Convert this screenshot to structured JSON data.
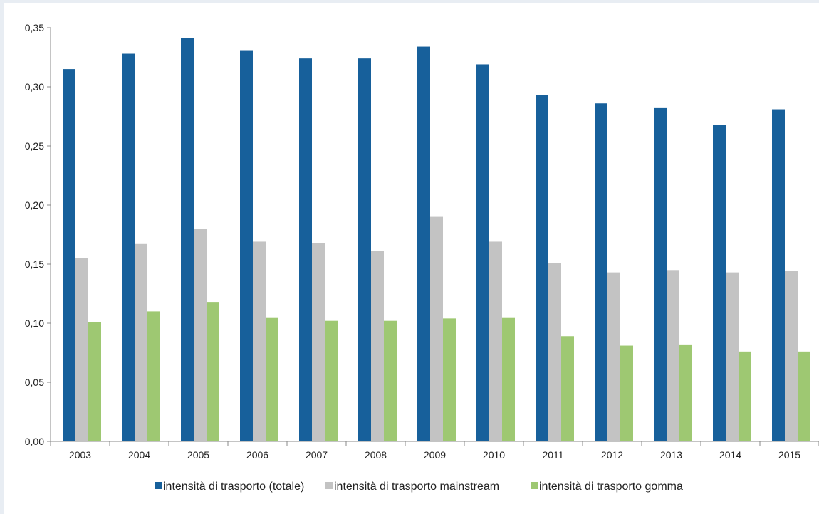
{
  "chart_data": {
    "type": "bar",
    "categories": [
      "2003",
      "2004",
      "2005",
      "2006",
      "2007",
      "2008",
      "2009",
      "2010",
      "2011",
      "2012",
      "2013",
      "2014",
      "2015"
    ],
    "series": [
      {
        "name": "intensità di trasporto (totale)",
        "color": "#17609b",
        "values": [
          0.315,
          0.328,
          0.341,
          0.331,
          0.324,
          0.324,
          0.334,
          0.319,
          0.293,
          0.286,
          0.282,
          0.268,
          0.281
        ]
      },
      {
        "name": "intensità di trasporto mainstream",
        "color": "#c3c3c3",
        "values": [
          0.155,
          0.167,
          0.18,
          0.169,
          0.168,
          0.161,
          0.19,
          0.169,
          0.151,
          0.143,
          0.145,
          0.143,
          0.144
        ]
      },
      {
        "name": "intensità di trasporto gomma",
        "color": "#9ec872",
        "values": [
          0.101,
          0.11,
          0.118,
          0.105,
          0.102,
          0.102,
          0.104,
          0.105,
          0.089,
          0.081,
          0.082,
          0.076,
          0.076
        ]
      }
    ],
    "yticks": [
      "0,00",
      "0,05",
      "0,10",
      "0,15",
      "0,20",
      "0,25",
      "0,30",
      "0,35"
    ],
    "ylim": [
      0,
      0.35
    ],
    "title": "",
    "xlabel": "",
    "ylabel": "",
    "grid": false,
    "legend_position": "bottom"
  }
}
